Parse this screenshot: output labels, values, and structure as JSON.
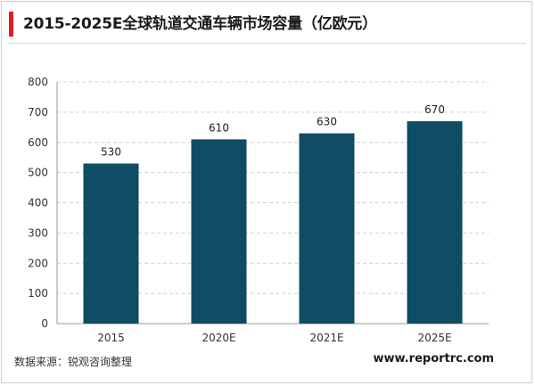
{
  "header": {
    "title": "2015-2025E全球轨道交通车辆市场容量（亿欧元）",
    "accent_color": "#e01e24"
  },
  "footer": {
    "source": "数据来源：锐观咨询整理",
    "website": "www.reportrc.com"
  },
  "chart_data": {
    "type": "bar",
    "categories": [
      "2015",
      "2020E",
      "2021E",
      "2025E"
    ],
    "values": [
      530,
      610,
      630,
      670
    ],
    "ylim": [
      0,
      800
    ],
    "yticks": [
      0,
      100,
      200,
      300,
      400,
      500,
      600,
      700,
      800
    ],
    "grid": true,
    "legend": "none",
    "bar_color": "#0e4d63",
    "xlabel": "",
    "ylabel": ""
  }
}
